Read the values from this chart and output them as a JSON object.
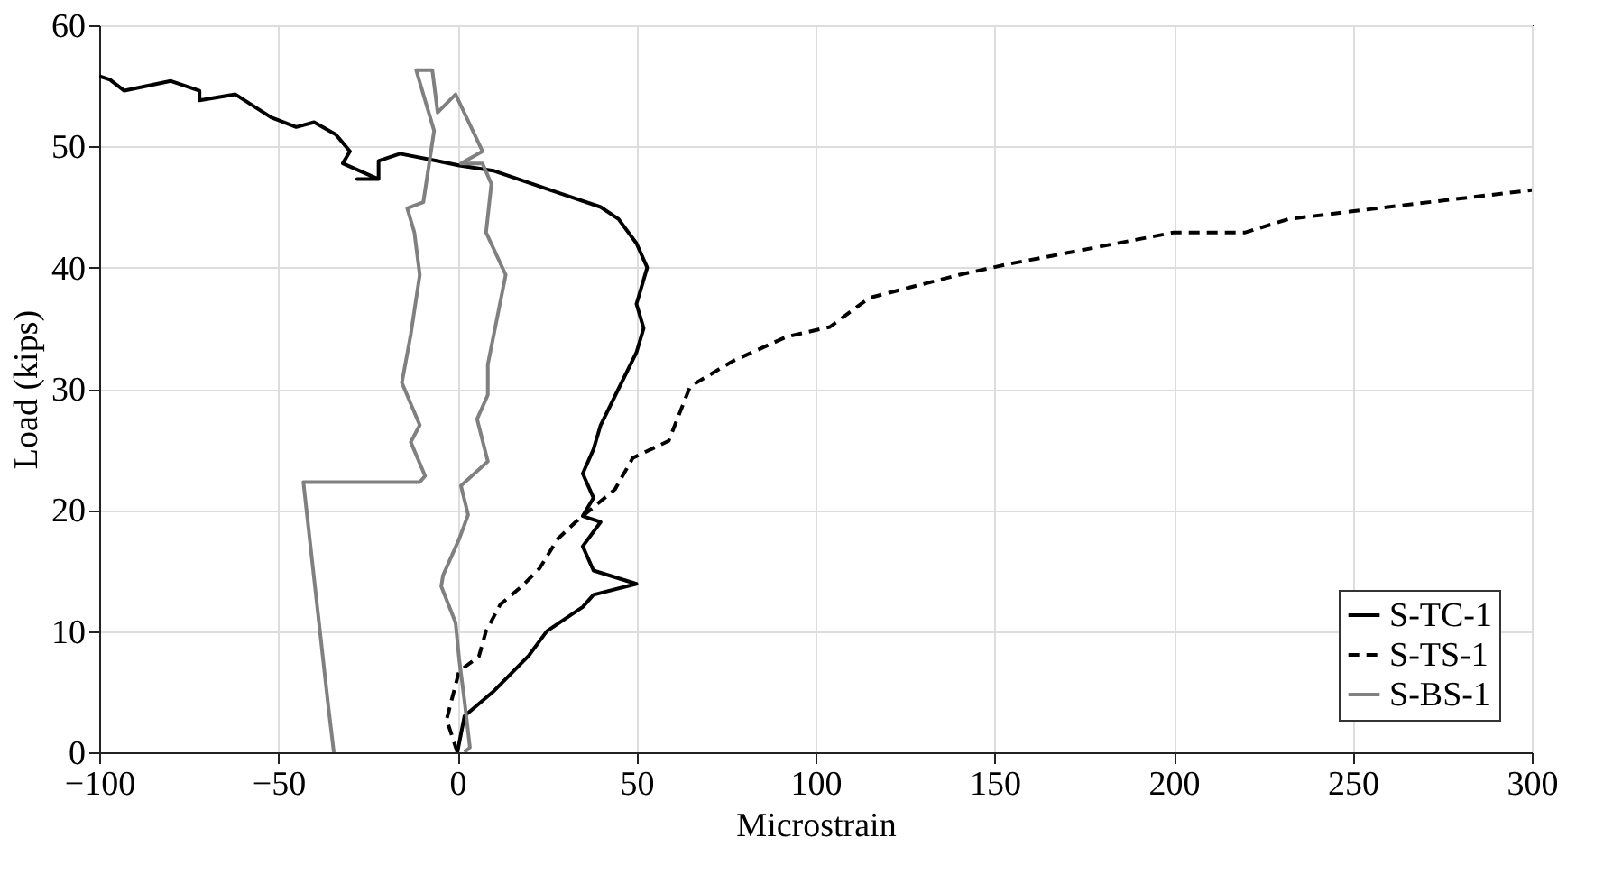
{
  "chart_data": {
    "type": "line",
    "xlabel": "Microstrain",
    "ylabel": "Load (kips)",
    "xlim": [
      -100,
      300
    ],
    "xticks": [
      -100,
      -50,
      0,
      50,
      100,
      150,
      200,
      250,
      300
    ],
    "ylim": [
      0,
      60
    ],
    "yticks": [
      0,
      10,
      20,
      30,
      40,
      50,
      60
    ],
    "grid": true,
    "legend": "bottom right",
    "marker": "none",
    "series": [
      {
        "name": "S-TC-1",
        "color": "#000000",
        "line_style": "solid",
        "x": [
          0,
          2,
          10,
          20,
          25,
          35,
          38,
          50,
          38,
          35,
          40,
          35,
          38,
          35,
          38,
          40,
          45,
          50,
          52,
          50,
          53,
          50,
          45,
          40,
          30,
          20,
          10,
          1,
          -5.5,
          -16,
          -22,
          -22,
          -28,
          -22,
          -32,
          -30,
          -34,
          -40,
          -45,
          -52,
          -62,
          -72,
          -72,
          -80,
          -93,
          -97,
          -100
        ],
        "values": [
          0,
          3,
          5,
          8,
          10,
          12,
          13,
          13.9,
          15,
          17,
          19,
          19.5,
          21,
          23,
          25,
          27,
          30,
          33,
          35,
          37,
          40,
          42,
          44,
          45,
          46,
          47,
          48,
          48.4,
          48.8,
          49.4,
          48.8,
          47.3,
          47.3,
          47.3,
          48.6,
          49.6,
          51,
          52,
          51.6,
          52.4,
          54.3,
          53.8,
          54.6,
          55.4,
          54.6,
          55.5,
          55.8
        ]
      },
      {
        "name": "S-TS-1",
        "color": "#000000",
        "line_style": "dashed",
        "x": [
          0,
          -3,
          0.5,
          6,
          8,
          12,
          18,
          23,
          28,
          33,
          44,
          49,
          59,
          65,
          77,
          92,
          104,
          115,
          140,
          154,
          170,
          200,
          220,
          232,
          257,
          300
        ],
        "values": [
          0,
          2.7,
          6.7,
          7.9,
          10,
          12.2,
          13.7,
          15.2,
          17.6,
          19,
          21.7,
          24.3,
          25.7,
          30.2,
          32.3,
          34.3,
          35.1,
          37.5,
          39.4,
          40.3,
          41.2,
          42.9,
          42.9,
          44,
          44.9,
          46.4
        ]
      },
      {
        "name": "S-BS-1",
        "color": "#808080",
        "line_style": "solid",
        "x": [
          2,
          3.5,
          2,
          0.5,
          -0.5,
          -4.5,
          -4,
          0.5,
          3,
          1,
          8.5,
          5.5,
          8.5,
          8.5,
          13.5,
          8,
          9.5,
          7,
          1,
          7,
          -0.5,
          -5.5,
          -7,
          -11.5,
          -6.5,
          -9.5,
          -14,
          -12,
          -10.5,
          -13,
          -15.5,
          -10.5,
          -13,
          -9,
          -10.5,
          -43,
          -36,
          -34.5
        ],
        "values": [
          0,
          0.4,
          4.2,
          7.7,
          10.7,
          13.7,
          14.6,
          17.6,
          19.6,
          22,
          24,
          27.5,
          29.5,
          32,
          39.4,
          42.9,
          46.9,
          48.6,
          48.6,
          49.6,
          54.3,
          52.8,
          56.3,
          56.3,
          51.3,
          45.4,
          44.9,
          42.9,
          39.4,
          34.5,
          30.5,
          27,
          25.6,
          22.8,
          22.3,
          22.3,
          3.7,
          0
        ]
      }
    ]
  }
}
